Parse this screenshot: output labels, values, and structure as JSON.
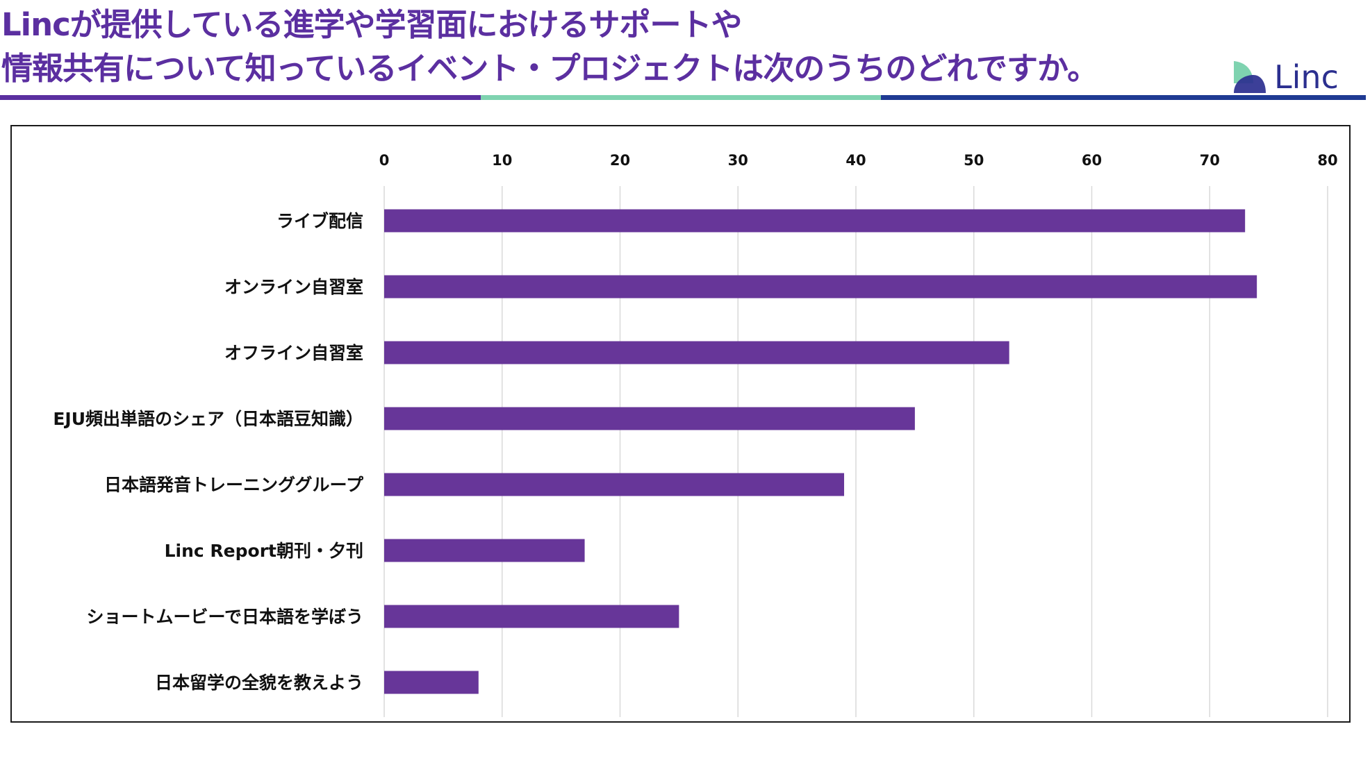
{
  "title": {
    "line1": "Lincが提供している進学や学習面におけるサポートや",
    "line2": "情報共有について知っているイベント・プロジェクトは次のうちのどれですか。"
  },
  "logo": {
    "text": "Linc"
  },
  "colors": {
    "title": "#5b2fa0",
    "bar": "#673699",
    "rule_purple": "#5b2fa0",
    "rule_green": "#7fd3b0",
    "rule_navy": "#1f3a93",
    "grid": "#d9d9d9"
  },
  "chart_data": {
    "type": "bar",
    "orientation": "horizontal",
    "categories": [
      "ライブ配信",
      "オンライン自習室",
      "オフライン自習室",
      "EJU頻出単語のシェア（日本語豆知識）",
      "日本語発音トレーニンググループ",
      "Linc Report朝刊・夕刊",
      "ショートムービーで日本語を学ぼう",
      "日本留学の全貌を教えよう"
    ],
    "values": [
      73,
      74,
      53,
      45,
      39,
      17,
      25,
      8
    ],
    "xlim": [
      0,
      80
    ],
    "ticks": [
      0,
      10,
      20,
      30,
      40,
      50,
      60,
      70,
      80
    ],
    "x_axis_position": "top",
    "grid": true,
    "legend": "none"
  }
}
